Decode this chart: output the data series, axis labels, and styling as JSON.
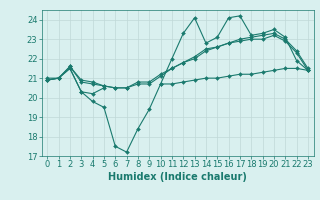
{
  "x": [
    0,
    1,
    2,
    3,
    4,
    5,
    6,
    7,
    8,
    9,
    10,
    11,
    12,
    13,
    14,
    15,
    16,
    17,
    18,
    19,
    20,
    21,
    22,
    23
  ],
  "line1": [
    21.0,
    21.0,
    21.5,
    20.3,
    20.2,
    20.5,
    null,
    null,
    null,
    null,
    20.7,
    20.7,
    20.8,
    20.9,
    21.0,
    21.0,
    21.1,
    21.2,
    21.2,
    21.3,
    21.4,
    21.5,
    21.5,
    21.4
  ],
  "line2": [
    20.9,
    21.0,
    21.5,
    20.3,
    19.8,
    19.5,
    17.5,
    17.2,
    18.4,
    19.4,
    20.7,
    22.0,
    23.3,
    24.1,
    22.8,
    23.1,
    24.1,
    24.2,
    23.2,
    23.3,
    23.5,
    23.1,
    21.9,
    21.4
  ],
  "line3": [
    20.9,
    21.0,
    21.6,
    20.9,
    20.8,
    20.6,
    20.5,
    20.5,
    20.8,
    20.8,
    21.2,
    21.5,
    21.8,
    22.1,
    22.5,
    22.6,
    22.8,
    23.0,
    23.1,
    23.2,
    23.3,
    23.0,
    22.4,
    21.5
  ],
  "line4": [
    20.9,
    21.0,
    21.6,
    20.8,
    20.7,
    20.6,
    20.5,
    20.5,
    20.7,
    20.7,
    21.1,
    21.5,
    21.8,
    22.0,
    22.4,
    22.6,
    22.8,
    22.9,
    23.0,
    23.0,
    23.2,
    22.9,
    22.3,
    21.4
  ],
  "line_color": "#1a7a6e",
  "bg_color": "#d9f0ef",
  "grid_color": "#c0d8d8",
  "xlabel": "Humidex (Indice chaleur)",
  "ylim": [
    17,
    24.5
  ],
  "xlim": [
    -0.5,
    23.5
  ],
  "yticks": [
    17,
    18,
    19,
    20,
    21,
    22,
    23,
    24
  ],
  "xticks": [
    0,
    1,
    2,
    3,
    4,
    5,
    6,
    7,
    8,
    9,
    10,
    11,
    12,
    13,
    14,
    15,
    16,
    17,
    18,
    19,
    20,
    21,
    22,
    23
  ],
  "xlabel_fontsize": 7,
  "tick_fontsize": 6,
  "marker": "D",
  "markersize": 2.0,
  "linewidth": 0.8
}
